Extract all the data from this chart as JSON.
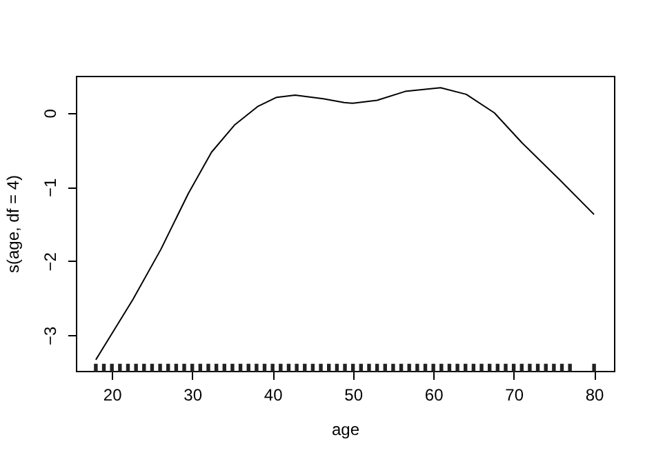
{
  "chart_data": {
    "type": "line",
    "xlabel": "age",
    "ylabel": "s(age, df = 4)",
    "xlim": [
      15.52,
      82.48
    ],
    "xticks": [
      20,
      30,
      40,
      50,
      60,
      70,
      80
    ],
    "ylim": [
      -3.48,
      0.5
    ],
    "yticks": [
      -3,
      -2,
      -1,
      0
    ],
    "grid": false,
    "line_style": "solid",
    "series": [
      {
        "color": "#000000",
        "marker": "none",
        "x": [
          18,
          22.6,
          26.1,
          29.5,
          32.4,
          35.3,
          38.2,
          40.5,
          42.8,
          46.3,
          48.9,
          50,
          53,
          56.5,
          60.9,
          64.1,
          67.6,
          71.0,
          75.7,
          80
        ],
        "values": [
          -3.33,
          -2.52,
          -1.84,
          -1.09,
          -0.53,
          -0.16,
          0.09,
          0.21,
          0.24,
          0.19,
          0.14,
          0.13,
          0.17,
          0.29,
          0.34,
          0.25,
          0.0,
          -0.4,
          -0.9,
          -1.37
        ]
      },
      {
        "type": "scatter",
        "color": "#222222",
        "x": [
          18,
          19,
          20,
          21,
          22,
          23,
          24,
          25,
          26,
          27,
          28,
          29,
          30,
          31,
          32,
          33,
          34,
          35,
          36,
          37,
          38,
          39,
          40,
          41,
          42,
          43,
          44,
          45,
          46,
          47,
          48,
          49,
          50,
          51,
          52,
          53,
          54,
          55,
          56,
          57,
          58,
          59,
          60,
          61,
          62,
          63,
          64,
          65,
          66,
          67,
          68,
          69,
          70,
          71,
          72,
          73,
          74,
          75,
          76,
          77,
          80
        ],
        "values": [
          -3.44,
          -3.44,
          -3.44,
          -3.44,
          -3.44,
          -3.44,
          -3.44,
          -3.44,
          -3.44,
          -3.44,
          -3.44,
          -3.44,
          -3.44,
          -3.44,
          -3.44,
          -3.44,
          -3.44,
          -3.44,
          -3.44,
          -3.44,
          -3.44,
          -3.44,
          -3.44,
          -3.44,
          -3.44,
          -3.44,
          -3.44,
          -3.44,
          -3.44,
          -3.44,
          -3.44,
          -3.44,
          -3.44,
          -3.44,
          -3.44,
          -3.44,
          -3.44,
          -3.44,
          -3.44,
          -3.44,
          -3.44,
          -3.44,
          -3.44,
          -3.44,
          -3.44,
          -3.44,
          -3.44,
          -3.44,
          -3.44,
          -3.44,
          -3.44,
          -3.44,
          -3.44,
          -3.44,
          -3.44,
          -3.44,
          -3.44,
          -3.44,
          -3.44,
          -3.44,
          -3.44
        ]
      }
    ]
  }
}
